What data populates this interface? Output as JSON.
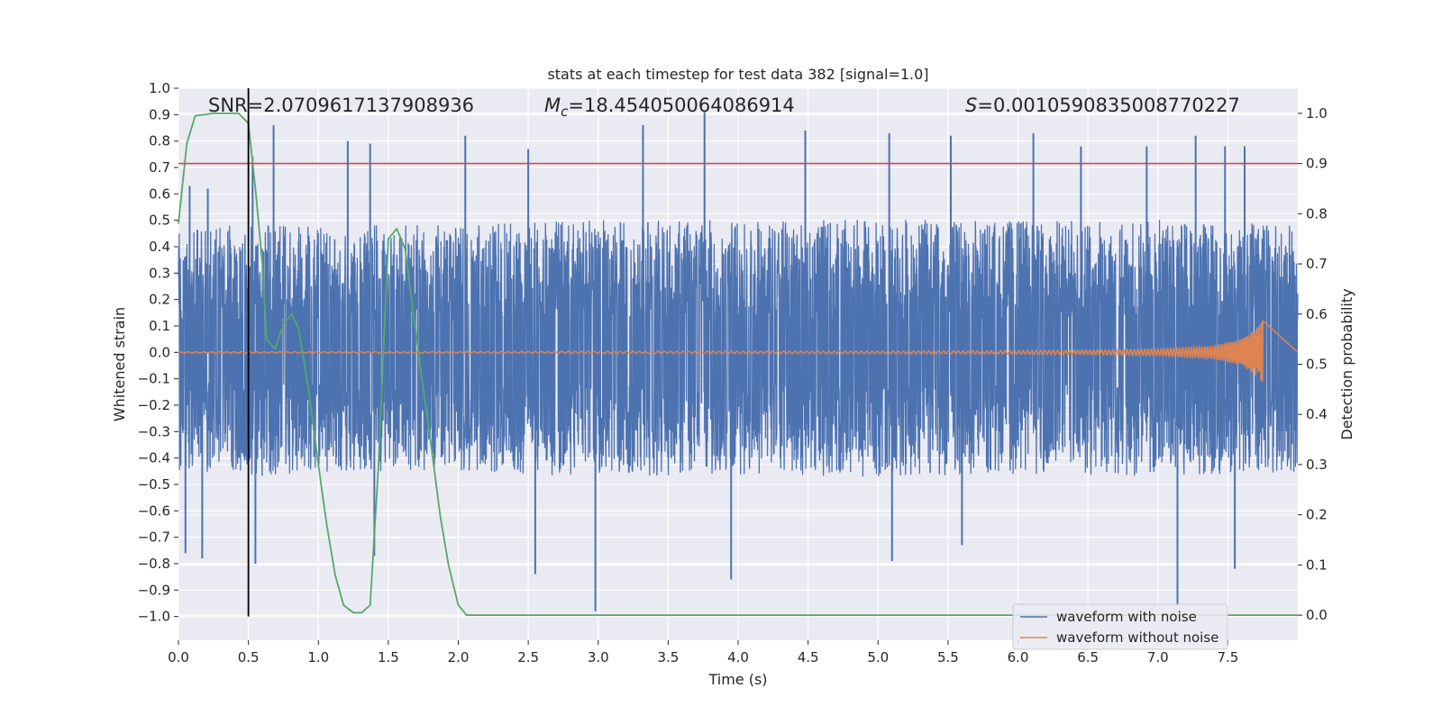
{
  "chart_data": {
    "type": "line",
    "title": "stats at each timestep for test data 382 [signal=1.0]",
    "xlabel": "Time (s)",
    "ylabel_left": "Whitened strain",
    "ylabel_right": "Detection probability",
    "xlim": [
      0.0,
      8.0
    ],
    "ylim_left": [
      -1.09,
      1.0
    ],
    "ylim_right": [
      -0.05,
      1.05
    ],
    "x_ticks": [
      0.0,
      0.5,
      1.0,
      1.5,
      2.0,
      2.5,
      3.0,
      3.5,
      4.0,
      4.5,
      5.0,
      5.5,
      6.0,
      6.5,
      7.0,
      7.5
    ],
    "x_tick_labels": [
      "0.0",
      "0.5",
      "1.0",
      "1.5",
      "2.0",
      "2.5",
      "3.0",
      "3.5",
      "4.0",
      "4.5",
      "5.0",
      "5.5",
      "6.0",
      "6.5",
      "7.0",
      "7.5"
    ],
    "y_left_ticks": [
      1.0,
      0.9,
      0.8,
      0.7,
      0.6,
      0.5,
      0.4,
      0.3,
      0.2,
      0.1,
      0.0,
      -0.1,
      -0.2,
      -0.3,
      -0.4,
      -0.5,
      -0.6,
      -0.7,
      -0.8,
      -0.9,
      -1.0
    ],
    "y_left_tick_labels": [
      "1.0",
      "0.9",
      "0.8",
      "0.7",
      "0.6",
      "0.5",
      "0.4",
      "0.3",
      "0.2",
      "0.1",
      "0.0",
      "−0.1",
      "−0.2",
      "−0.3",
      "−0.4",
      "−0.5",
      "−0.6",
      "−0.7",
      "−0.8",
      "−0.9",
      "−1.0"
    ],
    "y_right_ticks": [
      1.0,
      0.9,
      0.8,
      0.7,
      0.6,
      0.5,
      0.4,
      0.3,
      0.2,
      0.1,
      0.0
    ],
    "y_right_tick_labels": [
      "1.0",
      "0.9",
      "0.8",
      "0.7",
      "0.6",
      "0.5",
      "0.4",
      "0.3",
      "0.2",
      "0.1",
      "0.0"
    ],
    "grid": true,
    "annotations": {
      "snr": "SNR=2.0709617137908936",
      "mc_symbol": "M",
      "mc_subscript": "c",
      "mc_value": "=18.454050064086914",
      "s_symbol": "S",
      "s_value": "=0.0010590835008770227"
    },
    "threshold_line": {
      "axis": "right",
      "y": 0.9,
      "color": "#c44e52"
    },
    "marker_line": {
      "x": 0.5,
      "y_range": [
        -1.0,
        1.0
      ],
      "color": "#000000"
    },
    "series": [
      {
        "name": "waveform with noise",
        "axis": "left",
        "color": "#4c72b0",
        "style": "dense noise, t = 0.0 to 8.0 s",
        "envelope_upper": [
          [
            0.0,
            0.45
          ],
          [
            0.5,
            0.5
          ],
          [
            1.0,
            0.48
          ],
          [
            2.0,
            0.48
          ],
          [
            3.0,
            0.5
          ],
          [
            4.0,
            0.5
          ],
          [
            5.0,
            0.5
          ],
          [
            6.0,
            0.5
          ],
          [
            7.0,
            0.5
          ],
          [
            8.0,
            0.48
          ]
        ],
        "envelope_lower": [
          [
            0.0,
            -0.45
          ],
          [
            0.5,
            -0.47
          ],
          [
            1.0,
            -0.45
          ],
          [
            2.0,
            -0.45
          ],
          [
            3.0,
            -0.47
          ],
          [
            4.0,
            -0.46
          ],
          [
            5.0,
            -0.47
          ],
          [
            6.0,
            -0.46
          ],
          [
            7.0,
            -0.47
          ],
          [
            8.0,
            -0.45
          ]
        ],
        "spikes": [
          [
            0.08,
            0.63
          ],
          [
            0.21,
            0.62
          ],
          [
            0.53,
            0.74
          ],
          [
            0.68,
            0.86
          ],
          [
            1.21,
            0.8
          ],
          [
            1.37,
            0.79
          ],
          [
            2.05,
            0.82
          ],
          [
            2.5,
            0.77
          ],
          [
            3.32,
            0.86
          ],
          [
            3.76,
            0.91
          ],
          [
            4.48,
            0.84
          ],
          [
            5.08,
            0.83
          ],
          [
            5.52,
            0.82
          ],
          [
            6.11,
            0.83
          ],
          [
            6.45,
            0.78
          ],
          [
            6.92,
            0.78
          ],
          [
            7.27,
            0.82
          ],
          [
            7.48,
            0.78
          ],
          [
            7.62,
            0.78
          ],
          [
            0.05,
            -0.76
          ],
          [
            0.17,
            -0.78
          ],
          [
            0.55,
            -0.8
          ],
          [
            1.4,
            -0.77
          ],
          [
            2.55,
            -0.84
          ],
          [
            2.98,
            -0.98
          ],
          [
            3.95,
            -0.86
          ],
          [
            5.1,
            -0.79
          ],
          [
            5.6,
            -0.73
          ],
          [
            7.14,
            -0.96
          ],
          [
            7.55,
            -0.82
          ]
        ]
      },
      {
        "name": "waveform without noise",
        "axis": "left",
        "color": "#dd8452",
        "style": "chirp, amplitude growing until t = 7.75 s",
        "amplitude_points": [
          [
            0.0,
            0.002
          ],
          [
            2.0,
            0.003
          ],
          [
            4.0,
            0.004
          ],
          [
            5.5,
            0.005
          ],
          [
            6.5,
            0.008
          ],
          [
            7.0,
            0.012
          ],
          [
            7.4,
            0.025
          ],
          [
            7.6,
            0.05
          ],
          [
            7.7,
            0.09
          ],
          [
            7.75,
            0.12
          ]
        ],
        "end_time": 7.75
      },
      {
        "name": "detection probability",
        "axis": "right",
        "color": "#55a868",
        "points": [
          [
            0.0,
            0.78
          ],
          [
            0.06,
            0.94
          ],
          [
            0.12,
            0.995
          ],
          [
            0.25,
            1.0
          ],
          [
            0.43,
            1.0
          ],
          [
            0.5,
            0.98
          ],
          [
            0.55,
            0.85
          ],
          [
            0.6,
            0.7
          ],
          [
            0.63,
            0.55
          ],
          [
            0.69,
            0.53
          ],
          [
            0.75,
            0.58
          ],
          [
            0.81,
            0.6
          ],
          [
            0.86,
            0.57
          ],
          [
            0.93,
            0.45
          ],
          [
            1.0,
            0.3
          ],
          [
            1.06,
            0.18
          ],
          [
            1.12,
            0.08
          ],
          [
            1.18,
            0.02
          ],
          [
            1.25,
            0.005
          ],
          [
            1.31,
            0.005
          ],
          [
            1.37,
            0.02
          ],
          [
            1.43,
            0.3
          ],
          [
            1.5,
            0.75
          ],
          [
            1.56,
            0.77
          ],
          [
            1.62,
            0.73
          ],
          [
            1.68,
            0.6
          ],
          [
            1.75,
            0.45
          ],
          [
            1.81,
            0.33
          ],
          [
            1.87,
            0.2
          ],
          [
            1.93,
            0.1
          ],
          [
            2.0,
            0.02
          ],
          [
            2.06,
            0.0
          ],
          [
            8.0,
            0.0
          ]
        ]
      }
    ],
    "legend": {
      "position": "lower right",
      "entries": [
        {
          "label": "waveform with noise",
          "color": "#4c72b0"
        },
        {
          "label": "waveform without noise",
          "color": "#dd8452"
        }
      ]
    }
  }
}
